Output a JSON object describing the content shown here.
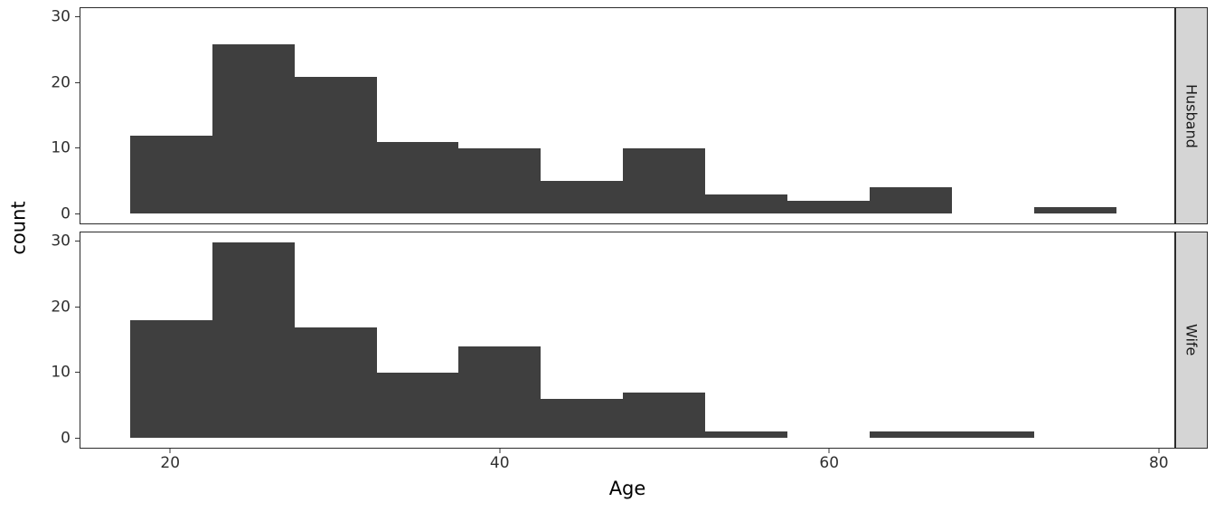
{
  "chart_data": {
    "type": "histogram",
    "xlabel": "Age",
    "ylabel": "count",
    "bin_width": 5,
    "bins": [
      17.5,
      22.5,
      27.5,
      32.5,
      37.5,
      42.5,
      47.5,
      52.5,
      57.5,
      62.5,
      67.5,
      72.5
    ],
    "facets": [
      {
        "label": "Husband",
        "counts": [
          12,
          26,
          21,
          11,
          10,
          5,
          10,
          3,
          2,
          4,
          0,
          1
        ]
      },
      {
        "label": "Wife",
        "counts": [
          18,
          30,
          17,
          10,
          14,
          6,
          7,
          1,
          0,
          1,
          1,
          0
        ]
      }
    ],
    "x_ticks": [
      20,
      40,
      60,
      80
    ],
    "y_ticks": [
      0,
      10,
      20,
      30
    ],
    "x_domain": [
      14.5,
      81.0
    ],
    "y_domain": [
      -1.5,
      31.5
    ],
    "bar_color": "#3f3f3f",
    "strip_bg": "#d5d5d5",
    "panel_border": "#2b2b2b",
    "legend": "none",
    "grid": "off"
  }
}
